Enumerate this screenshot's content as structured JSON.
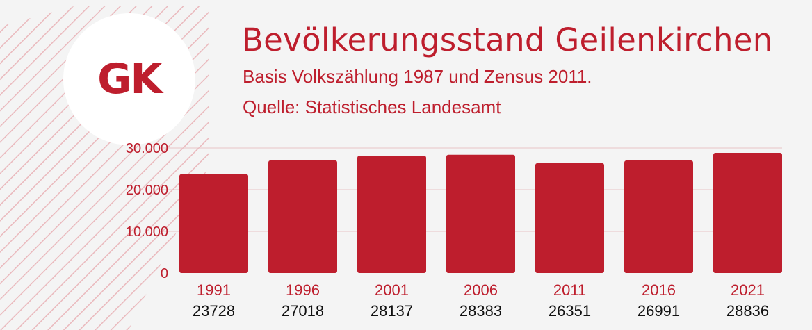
{
  "logo": {
    "text": "GK"
  },
  "header": {
    "title": "Bevölkerungsstand Geilenkirchen",
    "subtitle_line1": "Basis Volkszählung 1987 und Zensus 2011.",
    "subtitle_line2": "Quelle: Statistisches Landesamt"
  },
  "colors": {
    "accent": "#be1e2d",
    "background": "#f4f4f4",
    "logo_circle": "#ffffff",
    "value_text": "#111111",
    "gridline": "#e9c3c6",
    "hatch": "#eab9bd"
  },
  "chart_data": {
    "type": "bar",
    "title": "",
    "xlabel": "",
    "ylabel": "",
    "categories": [
      "1991",
      "1996",
      "2001",
      "2006",
      "2011",
      "2016",
      "2021"
    ],
    "values": [
      23728,
      27018,
      28137,
      28383,
      26351,
      26991,
      28836
    ],
    "data_labels": [
      "23728",
      "27018",
      "28137",
      "28383",
      "26351",
      "26991",
      "28836"
    ],
    "ylim": [
      0,
      30000
    ],
    "yticks": [
      0,
      10000,
      20000,
      30000
    ],
    "ytick_labels": [
      "0",
      "10.000",
      "20.000",
      "30.000"
    ],
    "grid": true,
    "legend": "none"
  }
}
